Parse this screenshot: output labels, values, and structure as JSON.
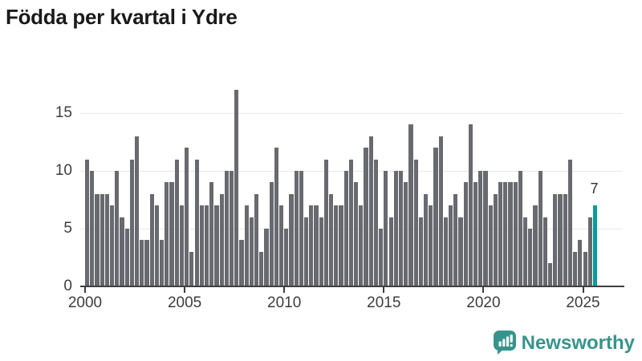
{
  "title": "Födda per kvartal i Ydre",
  "chart_data": {
    "type": "bar",
    "title": "Födda per kvartal i Ydre",
    "x_unit": "quarter",
    "start_period": "2000-Q1",
    "end_period": "2025-Q3",
    "values": [
      11,
      10,
      8,
      8,
      8,
      7,
      10,
      6,
      5,
      11,
      13,
      4,
      4,
      8,
      7,
      4,
      9,
      9,
      11,
      7,
      12,
      3,
      11,
      7,
      7,
      9,
      7,
      8,
      10,
      10,
      17,
      4,
      7,
      6,
      8,
      3,
      5,
      9,
      12,
      7,
      5,
      8,
      10,
      10,
      6,
      7,
      7,
      6,
      11,
      8,
      7,
      7,
      10,
      11,
      9,
      7,
      12,
      13,
      11,
      5,
      10,
      6,
      10,
      10,
      9,
      14,
      11,
      6,
      8,
      7,
      12,
      13,
      6,
      7,
      8,
      6,
      9,
      14,
      9,
      10,
      10,
      7,
      8,
      9,
      9,
      9,
      9,
      10,
      6,
      5,
      7,
      10,
      6,
      2,
      8,
      8,
      8,
      11,
      3,
      4,
      3,
      6,
      7
    ],
    "x_tick_labels": [
      "2000",
      "2005",
      "2010",
      "2015",
      "2020",
      "2025"
    ],
    "y_tick_labels": [
      "0",
      "5",
      "10",
      "15"
    ],
    "y_ticks": [
      0,
      5,
      10,
      15
    ],
    "ylim": [
      0,
      17.5
    ],
    "grid": "horizontal",
    "bar_color": "#696970",
    "highlight_color": "#00a099",
    "highlight_index": 102,
    "highlight_label": "7",
    "legend": "none"
  },
  "annotation": {
    "last_value_label": "7"
  },
  "footer": {
    "brand": "Newsworthy"
  }
}
